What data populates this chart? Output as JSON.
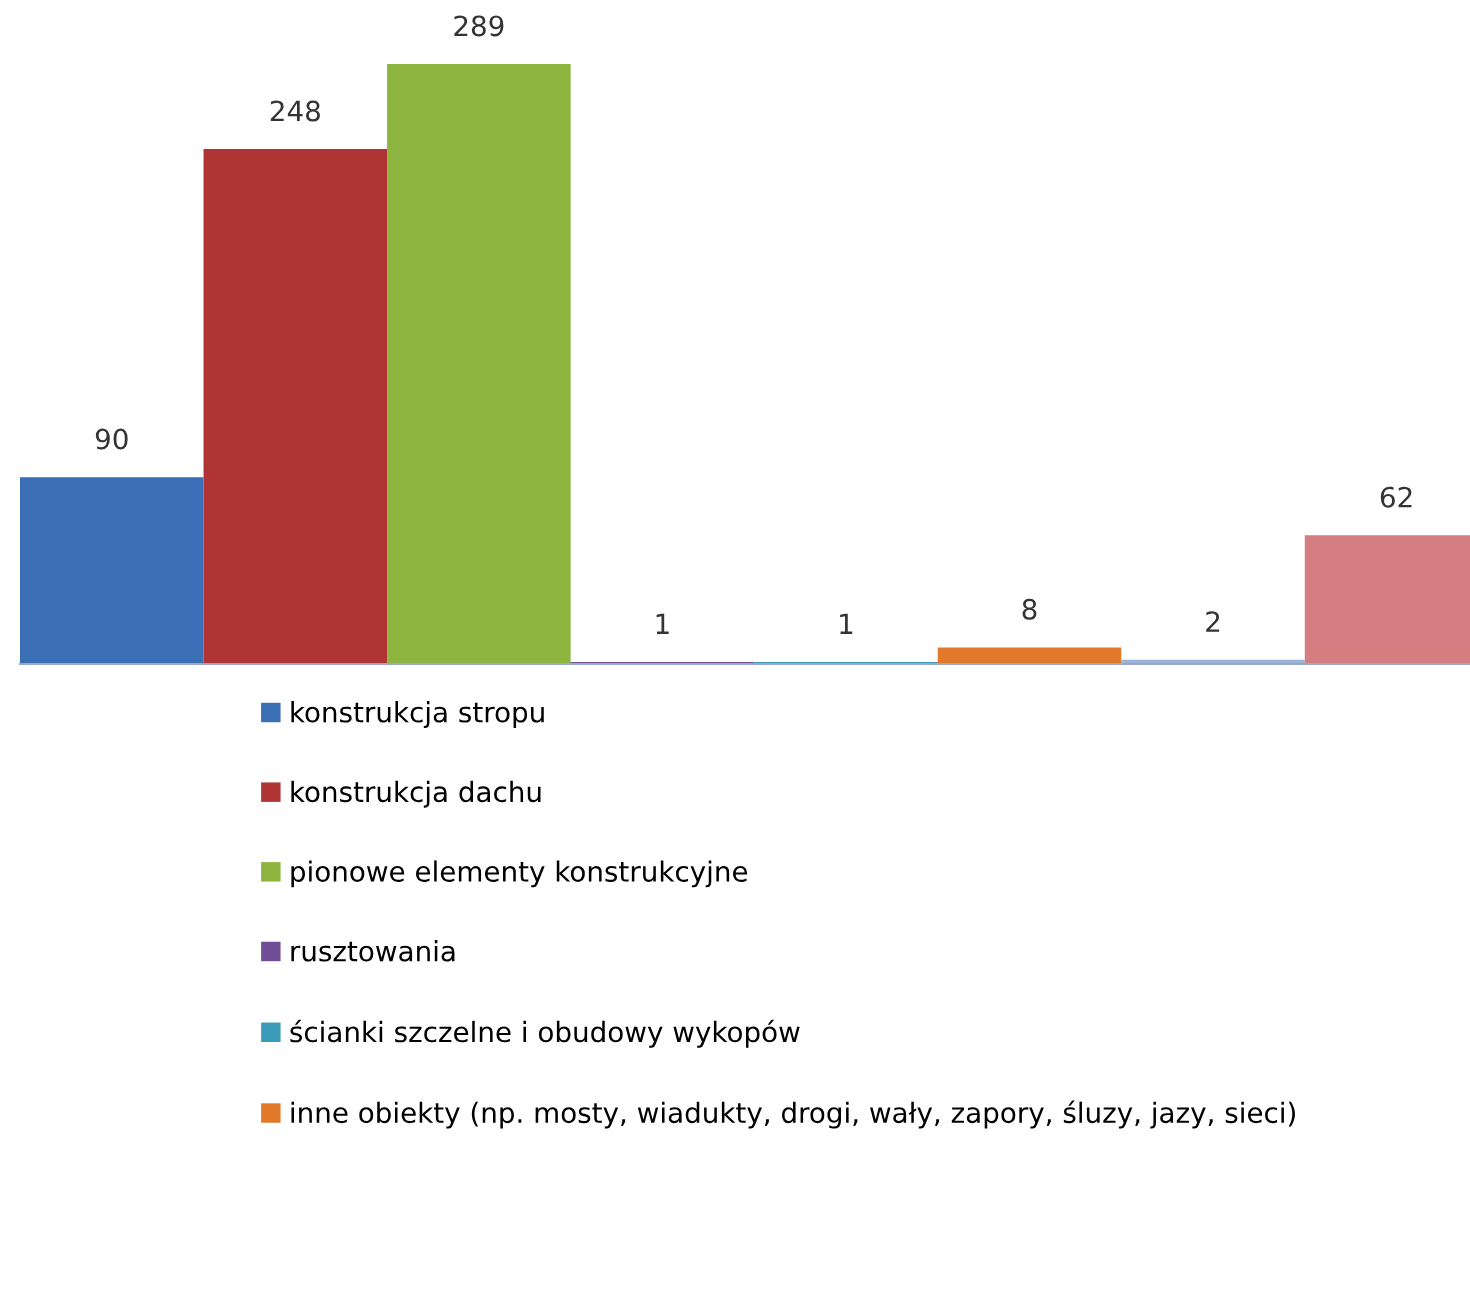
{
  "chart_data": {
    "type": "bar",
    "categories": [
      null
    ],
    "data_labels": true,
    "legend": "bottom",
    "series": [
      {
        "name": "konstrukcja stropu",
        "color": "#3a6fb5",
        "values": [
          90
        ]
      },
      {
        "name": "konstrukcja dachu",
        "color": "#b03434",
        "values": [
          248
        ]
      },
      {
        "name": "pionowe elementy konstrukcyjne",
        "color": "#8cb43e",
        "values": [
          289
        ]
      },
      {
        "name": "rusztowania",
        "color": "#6f4e96",
        "values": [
          1
        ]
      },
      {
        "name": "ścianki szczelne i obudowy wykopów",
        "color": "#3a9cb8",
        "values": [
          1
        ]
      },
      {
        "name": "inne obiekty (np. mosty, wiadukty, drogi, wały, zapory, śluzy, jazy, sieci)",
        "color": "#e2782a",
        "values": [
          8
        ]
      },
      {
        "color": "#9bb3d8",
        "values": [
          2
        ]
      },
      {
        "color": "#d47e82",
        "values": [
          62
        ]
      }
    ]
  }
}
